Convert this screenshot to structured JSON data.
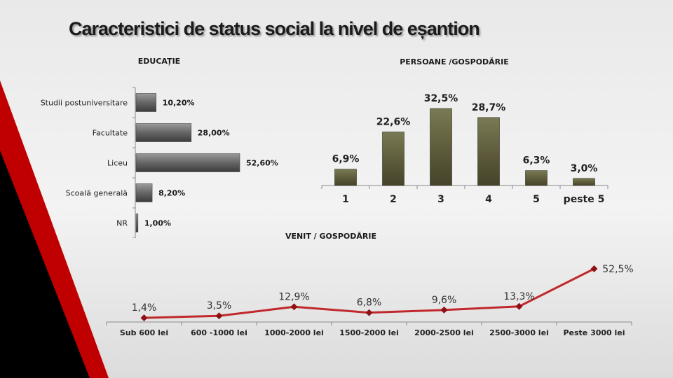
{
  "title": "Caracteristici de status social la nivel de eșantion",
  "colors": {
    "edu_bar": "#6a6a6a",
    "persons_bar": "#5f5d3c",
    "income_line": "#c0282c",
    "accent_red": "#cc0000"
  },
  "chart_data": [
    {
      "type": "bar",
      "orientation": "horizontal",
      "title": "EDUCAȚIE",
      "categories": [
        "Studii postuniversitare",
        "Facultate",
        "Liceu",
        "Scoală generală",
        "NR"
      ],
      "values": [
        10.2,
        28.0,
        52.6,
        8.2,
        1.0
      ],
      "data_labels": [
        "10,20%",
        "28,00%",
        "52,60%",
        "8,20%",
        "1,00%"
      ]
    },
    {
      "type": "bar",
      "title": "PERSOANE   /GOSPODĂRIE",
      "categories": [
        "1",
        "2",
        "3",
        "4",
        "5",
        "peste 5"
      ],
      "values": [
        6.9,
        22.6,
        32.5,
        28.7,
        6.3,
        3.0
      ],
      "data_labels": [
        "6,9%",
        "22,6%",
        "32,5%",
        "28,7%",
        "6,3%",
        "3,0%"
      ]
    },
    {
      "type": "line",
      "title": "VENIT  / GOSPODĂRIE",
      "categories": [
        "Sub 600 lei",
        "600 -1000 lei",
        "1000-2000 lei",
        "1500-2000 lei",
        "2000-2500 lei",
        "2500-3000 lei",
        "Peste 3000 lei"
      ],
      "values": [
        1.4,
        3.5,
        12.9,
        6.8,
        9.6,
        13.3,
        52.5
      ],
      "data_labels": [
        "1,4%",
        "3,5%",
        "12,9%",
        "6,8%",
        "9,6%",
        "13,3%",
        "52,5%"
      ]
    }
  ]
}
